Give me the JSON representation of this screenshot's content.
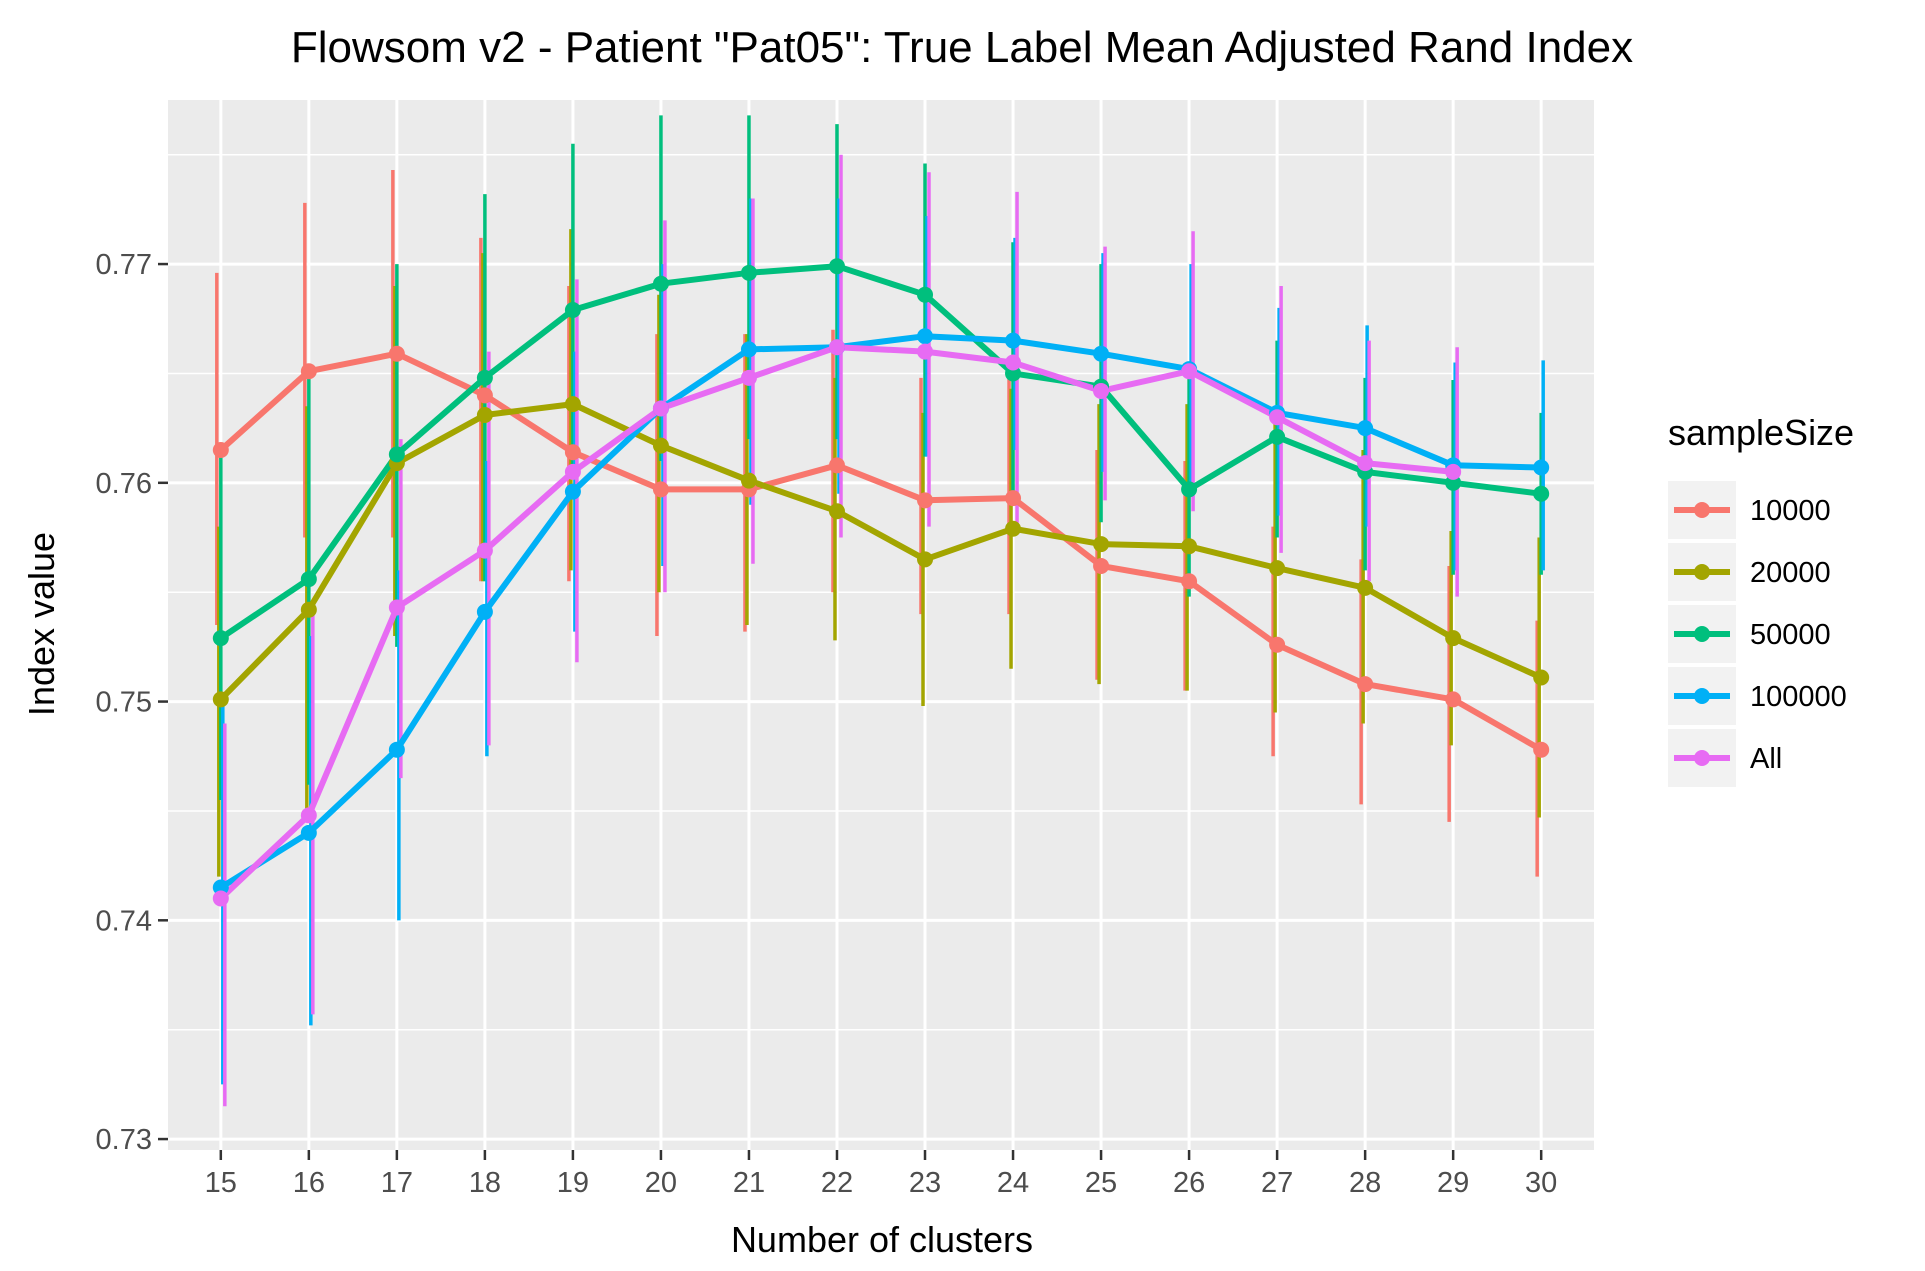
{
  "chart_data": {
    "type": "line",
    "title": "Flowsom v2 - Patient \"Pat05\": True Label Mean Adjusted Rand Index",
    "xlabel": "Number of clusters",
    "ylabel": "Index value",
    "x": [
      15,
      16,
      17,
      18,
      19,
      20,
      21,
      22,
      23,
      24,
      25,
      26,
      27,
      28,
      29,
      30
    ],
    "ylim": [
      0.7295,
      0.7775
    ],
    "yticks": [
      0.73,
      0.74,
      0.75,
      0.76,
      0.77
    ],
    "ytick_labels": [
      "0.73",
      "0.74",
      "0.75",
      "0.76",
      "0.77"
    ],
    "xticks": [
      15,
      16,
      17,
      18,
      19,
      20,
      21,
      22,
      23,
      24,
      25,
      26,
      27,
      28,
      29,
      30
    ],
    "xtick_labels": [
      "15",
      "16",
      "17",
      "18",
      "19",
      "20",
      "21",
      "22",
      "23",
      "24",
      "25",
      "26",
      "27",
      "28",
      "29",
      "30"
    ],
    "grid": true,
    "legend": {
      "title": "sampleSize",
      "position": "right"
    },
    "series": [
      {
        "name": "10000",
        "color": "#F8766D",
        "values": [
          0.7615,
          0.7651,
          0.7659,
          0.764,
          0.7614,
          0.7597,
          0.7597,
          0.7608,
          0.7592,
          0.7593,
          0.7562,
          0.7555,
          0.7526,
          0.7508,
          0.7501,
          0.7478
        ],
        "err_low": [
          0.7535,
          0.7575,
          0.7575,
          0.7555,
          0.7555,
          0.753,
          0.7532,
          0.755,
          0.754,
          0.754,
          0.751,
          0.7505,
          0.7475,
          0.7453,
          0.7445,
          0.742
        ],
        "err_high": [
          0.7696,
          0.7728,
          0.7743,
          0.7712,
          0.769,
          0.7668,
          0.7668,
          0.767,
          0.7648,
          0.7652,
          0.7615,
          0.761,
          0.758,
          0.7565,
          0.7562,
          0.7537
        ]
      },
      {
        "name": "20000",
        "color": "#A3A500",
        "values": [
          0.7501,
          0.7542,
          0.7609,
          0.7631,
          0.7636,
          0.7617,
          0.7601,
          0.7587,
          0.7565,
          0.7579,
          0.7572,
          0.7571,
          0.7561,
          0.7552,
          0.7529,
          0.7511
        ],
        "err_low": [
          0.742,
          0.745,
          0.753,
          0.7555,
          0.756,
          0.755,
          0.7535,
          0.7528,
          0.7498,
          0.7515,
          0.7508,
          0.7505,
          0.7495,
          0.749,
          0.748,
          0.7447
        ],
        "err_high": [
          0.758,
          0.7635,
          0.769,
          0.7705,
          0.7716,
          0.7686,
          0.7668,
          0.7648,
          0.7632,
          0.7643,
          0.7636,
          0.7636,
          0.7628,
          0.7615,
          0.7578,
          0.7575
        ]
      },
      {
        "name": "50000",
        "color": "#00BF7D",
        "values": [
          0.7529,
          0.7556,
          0.7613,
          0.7648,
          0.7679,
          0.7691,
          0.7696,
          0.7699,
          0.7686,
          0.765,
          0.7644,
          0.7597,
          0.7621,
          0.7605,
          0.76,
          0.7595
        ],
        "err_low": [
          0.7455,
          0.7462,
          0.7525,
          0.7555,
          0.7605,
          0.761,
          0.762,
          0.762,
          0.7612,
          0.7592,
          0.7582,
          0.7548,
          0.7575,
          0.756,
          0.7558,
          0.7558
        ],
        "err_high": [
          0.7612,
          0.7648,
          0.77,
          0.7732,
          0.7755,
          0.7768,
          0.7768,
          0.7764,
          0.7746,
          0.771,
          0.77,
          0.765,
          0.7665,
          0.7648,
          0.7647,
          0.7632
        ]
      },
      {
        "name": "100000",
        "color": "#00B0F6",
        "values": [
          0.7415,
          0.744,
          0.7478,
          0.7541,
          0.7596,
          0.7634,
          0.7661,
          0.7662,
          0.7667,
          0.7665,
          0.7659,
          0.7652,
          0.7632,
          0.7625,
          0.7608,
          0.7607
        ],
        "err_low": [
          0.7325,
          0.7352,
          0.74,
          0.7475,
          0.7532,
          0.7562,
          0.759,
          0.7595,
          0.7612,
          0.7615,
          0.7605,
          0.7595,
          0.7585,
          0.758,
          0.756,
          0.756
        ],
        "err_high": [
          0.75,
          0.753,
          0.756,
          0.761,
          0.766,
          0.77,
          0.773,
          0.773,
          0.7722,
          0.7712,
          0.7705,
          0.77,
          0.768,
          0.7672,
          0.7655,
          0.7656
        ]
      },
      {
        "name": "All",
        "color": "#E76BF3",
        "values": [
          0.741,
          0.7448,
          0.7543,
          0.7569,
          0.7605,
          0.7634,
          0.7648,
          0.7662,
          0.766,
          0.7655,
          0.7642,
          0.7651,
          0.763,
          0.7609,
          0.7605,
          null
        ],
        "err_low": [
          0.7315,
          0.7357,
          0.7465,
          0.748,
          0.7518,
          0.755,
          0.7563,
          0.7575,
          0.758,
          0.758,
          0.7592,
          0.7587,
          0.7568,
          0.7555,
          0.7548,
          null
        ],
        "err_high": [
          0.749,
          0.754,
          0.762,
          0.766,
          0.7693,
          0.772,
          0.773,
          0.775,
          0.7742,
          0.7733,
          0.7708,
          0.7715,
          0.769,
          0.7665,
          0.7662,
          null
        ]
      }
    ]
  }
}
